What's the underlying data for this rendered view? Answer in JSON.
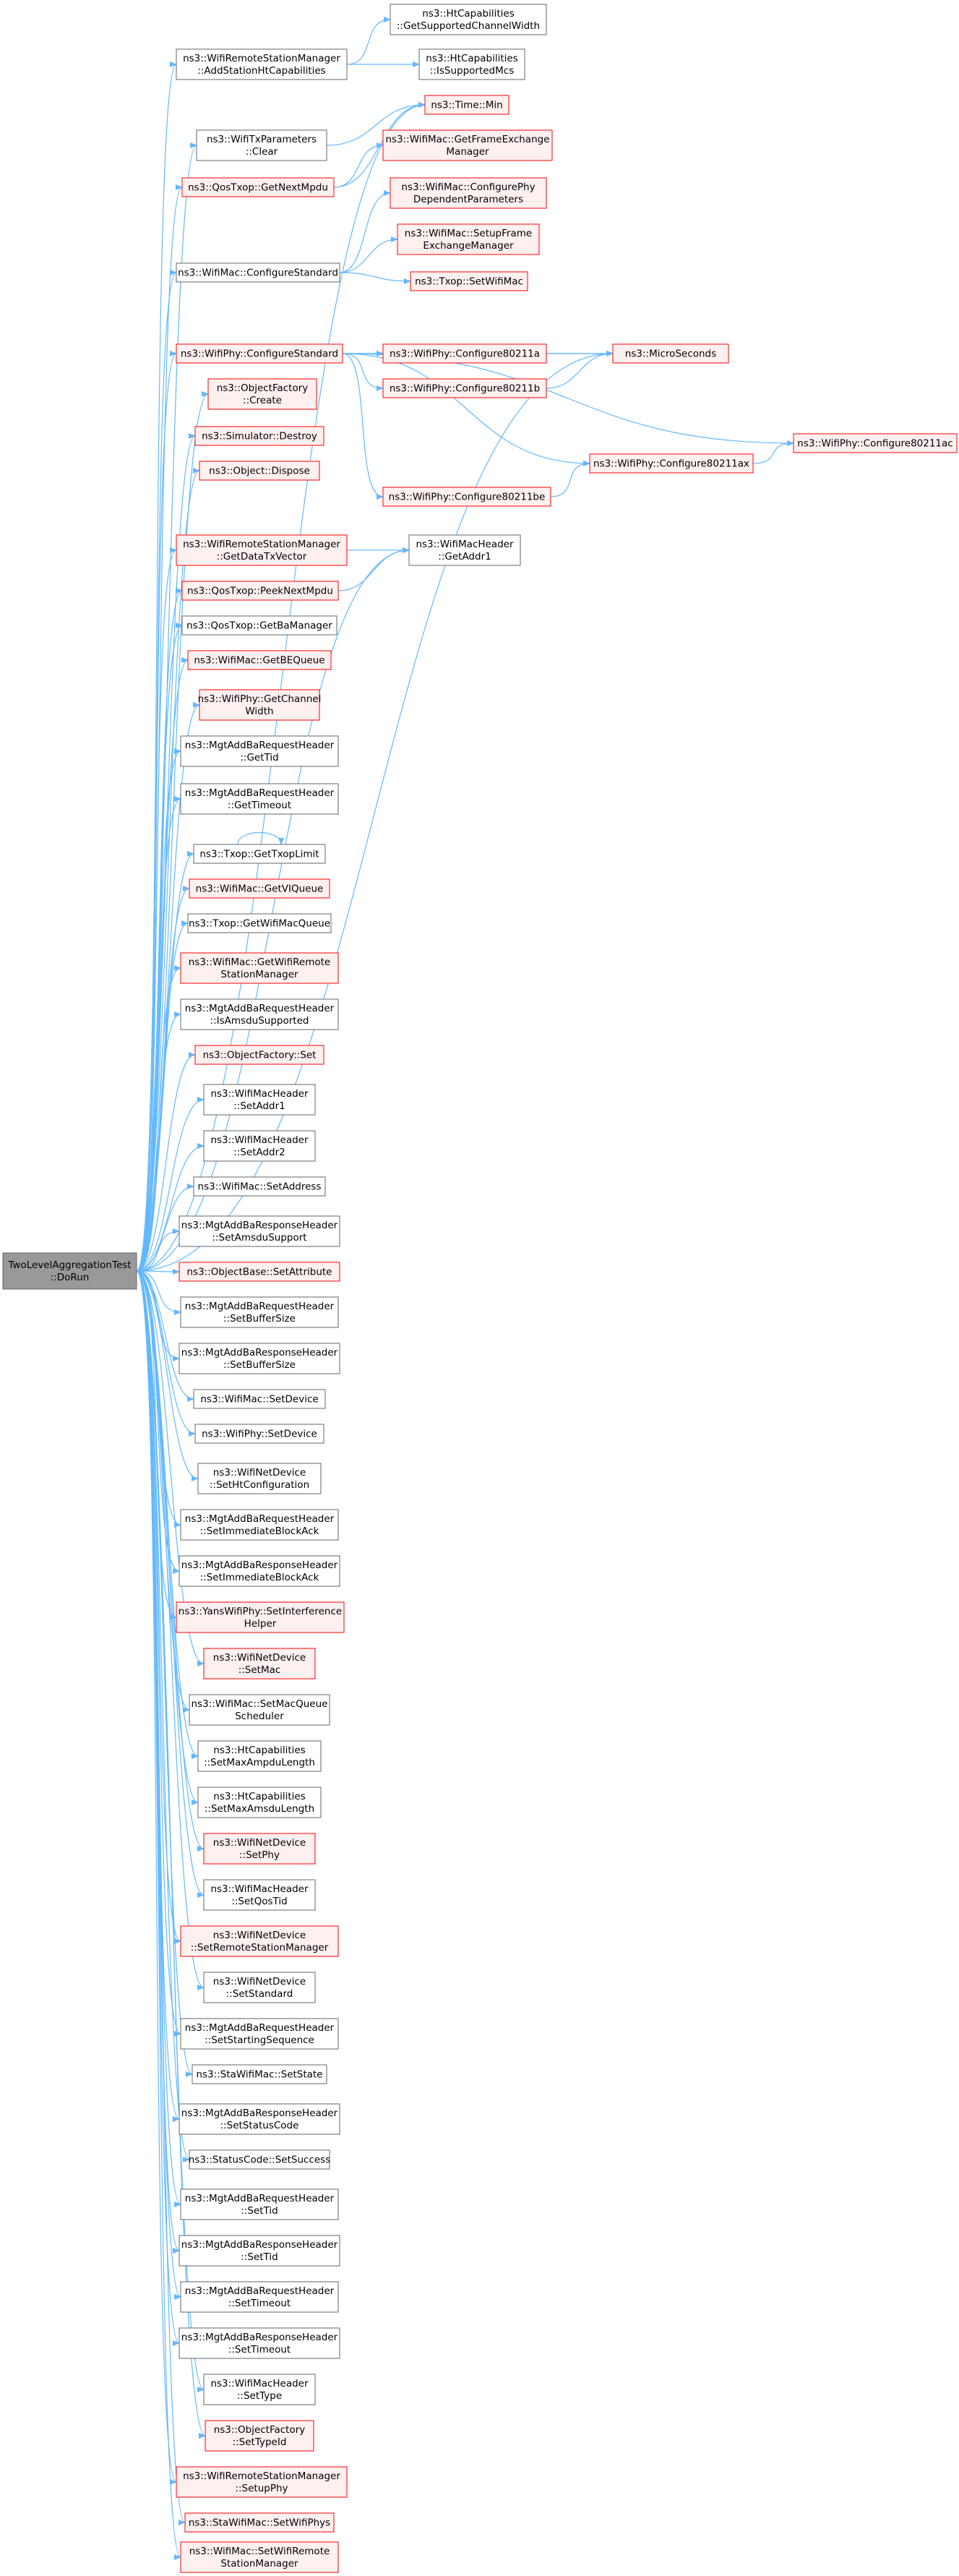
{
  "colors": {
    "edge": "#63b8ff",
    "node_border_plain": "#666666",
    "node_border_red": "#ff0000",
    "node_fill_plain": "#ffffff",
    "node_fill_red": "#fff0f0",
    "node_fill_root": "#999999",
    "text": "#000000"
  },
  "diagram": {
    "nodes": [
      {
        "id": "root",
        "lines": [
          "TwoLevelAggregationTest",
          "::DoRun"
        ],
        "style": "root"
      },
      {
        "id": "htcap_gscw",
        "lines": [
          "ns3::HtCapabilities",
          "::GetSupportedChannelWidth"
        ],
        "style": "plain"
      },
      {
        "id": "wrsm_addht",
        "lines": [
          "ns3::WifiRemoteStationManager",
          "::AddStationHtCapabilities"
        ],
        "style": "plain"
      },
      {
        "id": "htcap_ism",
        "lines": [
          "ns3::HtCapabilities",
          "::IsSupportedMcs"
        ],
        "style": "plain"
      },
      {
        "id": "time_min",
        "lines": [
          "ns3::Time::Min"
        ],
        "style": "red"
      },
      {
        "id": "wtp_clear",
        "lines": [
          "ns3::WifiTxParameters",
          "::Clear"
        ],
        "style": "plain"
      },
      {
        "id": "mac_gfem",
        "lines": [
          "ns3::WifiMac::GetFrameExchange",
          "Manager"
        ],
        "style": "red"
      },
      {
        "id": "qos_gnm",
        "lines": [
          "ns3::QosTxop::GetNextMpdu"
        ],
        "style": "red"
      },
      {
        "id": "mac_cpdp",
        "lines": [
          "ns3::WifiMac::ConfigurePhy",
          "DependentParameters"
        ],
        "style": "red"
      },
      {
        "id": "mac_sfem",
        "lines": [
          "ns3::WifiMac::SetupFrame",
          "ExchangeManager"
        ],
        "style": "red"
      },
      {
        "id": "mac_cs",
        "lines": [
          "ns3::WifiMac::ConfigureStandard"
        ],
        "style": "plain"
      },
      {
        "id": "txop_swm",
        "lines": [
          "ns3::Txop::SetWifiMac"
        ],
        "style": "red"
      },
      {
        "id": "phy_cs",
        "lines": [
          "ns3::WifiPhy::ConfigureStandard"
        ],
        "style": "red"
      },
      {
        "id": "phy_a",
        "lines": [
          "ns3::WifiPhy::Configure80211a"
        ],
        "style": "red"
      },
      {
        "id": "micro",
        "lines": [
          "ns3::MicroSeconds"
        ],
        "style": "red"
      },
      {
        "id": "phy_b",
        "lines": [
          "ns3::WifiPhy::Configure80211b"
        ],
        "style": "red"
      },
      {
        "id": "objf_create",
        "lines": [
          "ns3::ObjectFactory",
          "::Create"
        ],
        "style": "red"
      },
      {
        "id": "phy_ac",
        "lines": [
          "ns3::WifiPhy::Configure80211ac"
        ],
        "style": "red"
      },
      {
        "id": "phy_ax",
        "lines": [
          "ns3::WifiPhy::Configure80211ax"
        ],
        "style": "red"
      },
      {
        "id": "sim_destroy",
        "lines": [
          "ns3::Simulator::Destroy"
        ],
        "style": "red"
      },
      {
        "id": "phy_be",
        "lines": [
          "ns3::WifiPhy::Configure80211be"
        ],
        "style": "red"
      },
      {
        "id": "obj_dispose",
        "lines": [
          "ns3::Object::Dispose"
        ],
        "style": "red"
      },
      {
        "id": "wrsm_gdtv",
        "lines": [
          "ns3::WifiRemoteStationManager",
          "::GetDataTxVector"
        ],
        "style": "red"
      },
      {
        "id": "wmh_ga1",
        "lines": [
          "ns3::WifiMacHeader",
          "::GetAddr1"
        ],
        "style": "plain"
      },
      {
        "id": "qos_pnm",
        "lines": [
          "ns3::QosTxop::PeekNextMpdu"
        ],
        "style": "red"
      },
      {
        "id": "qos_gbm",
        "lines": [
          "ns3::QosTxop::GetBaManager"
        ],
        "style": "plain"
      },
      {
        "id": "mac_gbeq",
        "lines": [
          "ns3::WifiMac::GetBEQueue"
        ],
        "style": "red"
      },
      {
        "id": "phy_gcw",
        "lines": [
          "ns3::WifiPhy::GetChannel",
          "Width"
        ],
        "style": "red"
      },
      {
        "id": "mabreq_gtid",
        "lines": [
          "ns3::MgtAddBaRequestHeader",
          "::GetTid"
        ],
        "style": "plain"
      },
      {
        "id": "mabreq_gto",
        "lines": [
          "ns3::MgtAddBaRequestHeader",
          "::GetTimeout"
        ],
        "style": "plain"
      },
      {
        "id": "txop_gtl",
        "lines": [
          "ns3::Txop::GetTxopLimit"
        ],
        "style": "plain"
      },
      {
        "id": "mac_gviq",
        "lines": [
          "ns3::WifiMac::GetVIQueue"
        ],
        "style": "red"
      },
      {
        "id": "txop_gwmq",
        "lines": [
          "ns3::Txop::GetWifiMacQueue"
        ],
        "style": "plain"
      },
      {
        "id": "mac_gwrsm",
        "lines": [
          "ns3::WifiMac::GetWifiRemote",
          "StationManager"
        ],
        "style": "red"
      },
      {
        "id": "mabreq_ias",
        "lines": [
          "ns3::MgtAddBaRequestHeader",
          "::IsAmsduSupported"
        ],
        "style": "plain"
      },
      {
        "id": "objf_set",
        "lines": [
          "ns3::ObjectFactory::Set"
        ],
        "style": "red"
      },
      {
        "id": "wmh_sa1",
        "lines": [
          "ns3::WifiMacHeader",
          "::SetAddr1"
        ],
        "style": "plain"
      },
      {
        "id": "wmh_sa2",
        "lines": [
          "ns3::WifiMacHeader",
          "::SetAddr2"
        ],
        "style": "plain"
      },
      {
        "id": "mac_sadr",
        "lines": [
          "ns3::WifiMac::SetAddress"
        ],
        "style": "plain"
      },
      {
        "id": "mabresp_sas",
        "lines": [
          "ns3::MgtAddBaResponseHeader",
          "::SetAmsduSupport"
        ],
        "style": "plain"
      },
      {
        "id": "objb_sattr",
        "lines": [
          "ns3::ObjectBase::SetAttribute"
        ],
        "style": "red"
      },
      {
        "id": "mabreq_sbs",
        "lines": [
          "ns3::MgtAddBaRequestHeader",
          "::SetBufferSize"
        ],
        "style": "plain"
      },
      {
        "id": "mabresp_sbs",
        "lines": [
          "ns3::MgtAddBaResponseHeader",
          "::SetBufferSize"
        ],
        "style": "plain"
      },
      {
        "id": "mac_sdev",
        "lines": [
          "ns3::WifiMac::SetDevice"
        ],
        "style": "plain"
      },
      {
        "id": "phy_sdev",
        "lines": [
          "ns3::WifiPhy::SetDevice"
        ],
        "style": "plain"
      },
      {
        "id": "wnd_shtc",
        "lines": [
          "ns3::WifiNetDevice",
          "::SetHtConfiguration"
        ],
        "style": "plain"
      },
      {
        "id": "mabreq_siba",
        "lines": [
          "ns3::MgtAddBaRequestHeader",
          "::SetImmediateBlockAck"
        ],
        "style": "plain"
      },
      {
        "id": "mabresp_siba",
        "lines": [
          "ns3::MgtAddBaResponseHeader",
          "::SetImmediateBlockAck"
        ],
        "style": "plain"
      },
      {
        "id": "yans_sih",
        "lines": [
          "ns3::YansWifiPhy::SetInterference",
          "Helper"
        ],
        "style": "red"
      },
      {
        "id": "wnd_smac",
        "lines": [
          "ns3::WifiNetDevice",
          "::SetMac"
        ],
        "style": "red"
      },
      {
        "id": "mac_smqs",
        "lines": [
          "ns3::WifiMac::SetMacQueue",
          "Scheduler"
        ],
        "style": "plain"
      },
      {
        "id": "htcap_smal",
        "lines": [
          "ns3::HtCapabilities",
          "::SetMaxAmpduLength"
        ],
        "style": "plain"
      },
      {
        "id": "htcap_smsl",
        "lines": [
          "ns3::HtCapabilities",
          "::SetMaxAmsduLength"
        ],
        "style": "plain"
      },
      {
        "id": "wnd_sphy",
        "lines": [
          "ns3::WifiNetDevice",
          "::SetPhy"
        ],
        "style": "red"
      },
      {
        "id": "wmh_sqt",
        "lines": [
          "ns3::WifiMacHeader",
          "::SetQosTid"
        ],
        "style": "plain"
      },
      {
        "id": "wnd_srsm",
        "lines": [
          "ns3::WifiNetDevice",
          "::SetRemoteStationManager"
        ],
        "style": "red"
      },
      {
        "id": "wnd_sstd",
        "lines": [
          "ns3::WifiNetDevice",
          "::SetStandard"
        ],
        "style": "plain"
      },
      {
        "id": "mabreq_sss",
        "lines": [
          "ns3::MgtAddBaRequestHeader",
          "::SetStartingSequence"
        ],
        "style": "plain"
      },
      {
        "id": "sta_sst",
        "lines": [
          "ns3::StaWifiMac::SetState"
        ],
        "style": "plain"
      },
      {
        "id": "mabresp_ssc",
        "lines": [
          "ns3::MgtAddBaResponseHeader",
          "::SetStatusCode"
        ],
        "style": "plain"
      },
      {
        "id": "sc_ss",
        "lines": [
          "ns3::StatusCode::SetSuccess"
        ],
        "style": "plain"
      },
      {
        "id": "mabreq_stid",
        "lines": [
          "ns3::MgtAddBaRequestHeader",
          "::SetTid"
        ],
        "style": "plain"
      },
      {
        "id": "mabresp_stid",
        "lines": [
          "ns3::MgtAddBaResponseHeader",
          "::SetTid"
        ],
        "style": "plain"
      },
      {
        "id": "mabreq_sto",
        "lines": [
          "ns3::MgtAddBaRequestHeader",
          "::SetTimeout"
        ],
        "style": "plain"
      },
      {
        "id": "mabresp_sto",
        "lines": [
          "ns3::MgtAddBaResponseHeader",
          "::SetTimeout"
        ],
        "style": "plain"
      },
      {
        "id": "wmh_stype",
        "lines": [
          "ns3::WifiMacHeader",
          "::SetType"
        ],
        "style": "plain"
      },
      {
        "id": "objf_stid",
        "lines": [
          "ns3::ObjectFactory",
          "::SetTypeId"
        ],
        "style": "red"
      },
      {
        "id": "wrsm_sphy",
        "lines": [
          "ns3::WifiRemoteStationManager",
          "::SetupPhy"
        ],
        "style": "red"
      },
      {
        "id": "sta_swp",
        "lines": [
          "ns3::StaWifiMac::SetWifiPhys"
        ],
        "style": "red"
      },
      {
        "id": "mac_swrsm",
        "lines": [
          "ns3::WifiMac::SetWifiRemote",
          "StationManager"
        ],
        "style": "red"
      }
    ],
    "edges": [
      [
        "wrsm_addht",
        "htcap_gscw"
      ],
      [
        "wrsm_addht",
        "htcap_ism"
      ],
      [
        "wtp_clear",
        "time_min"
      ],
      [
        "qos_gnm",
        "time_min"
      ],
      [
        "qos_gnm",
        "mac_gfem"
      ],
      [
        "mac_cs",
        "mac_cpdp"
      ],
      [
        "mac_cs",
        "mac_sfem"
      ],
      [
        "mac_cs",
        "txop_swm"
      ],
      [
        "phy_cs",
        "phy_a"
      ],
      [
        "phy_cs",
        "phy_b"
      ],
      [
        "phy_cs",
        "micro"
      ],
      [
        "phy_cs",
        "phy_ac"
      ],
      [
        "phy_cs",
        "phy_ax"
      ],
      [
        "phy_cs",
        "phy_be"
      ],
      [
        "phy_a",
        "micro"
      ],
      [
        "phy_b",
        "micro"
      ],
      [
        "phy_ax",
        "phy_ac"
      ],
      [
        "phy_be",
        "phy_ax"
      ],
      [
        "wrsm_gdtv",
        "wmh_ga1"
      ],
      [
        "qos_pnm",
        "wmh_ga1"
      ],
      [
        "txop_gtl",
        "txop_gtl"
      ],
      [
        "root",
        "wrsm_addht"
      ],
      [
        "root",
        "time_min"
      ],
      [
        "root",
        "wtp_clear"
      ],
      [
        "root",
        "qos_gnm"
      ],
      [
        "root",
        "mac_cs"
      ],
      [
        "root",
        "micro"
      ],
      [
        "root",
        "phy_cs"
      ],
      [
        "root",
        "objf_create"
      ],
      [
        "root",
        "sim_destroy"
      ],
      [
        "root",
        "obj_dispose"
      ],
      [
        "root",
        "wmh_ga1"
      ],
      [
        "root",
        "wrsm_gdtv"
      ],
      [
        "root",
        "qos_pnm"
      ],
      [
        "root",
        "qos_gbm"
      ],
      [
        "root",
        "mac_gbeq"
      ],
      [
        "root",
        "phy_gcw"
      ],
      [
        "root",
        "mabreq_gtid"
      ],
      [
        "root",
        "mabreq_gto"
      ],
      [
        "root",
        "txop_gtl"
      ],
      [
        "root",
        "mac_gviq"
      ],
      [
        "root",
        "txop_gwmq"
      ],
      [
        "root",
        "mac_gwrsm"
      ],
      [
        "root",
        "mabreq_ias"
      ],
      [
        "root",
        "objf_set"
      ],
      [
        "root",
        "wmh_sa1"
      ],
      [
        "root",
        "wmh_sa2"
      ],
      [
        "root",
        "mac_sadr"
      ],
      [
        "root",
        "mabresp_sas"
      ],
      [
        "root",
        "objb_sattr"
      ],
      [
        "root",
        "mabreq_sbs"
      ],
      [
        "root",
        "mabresp_sbs"
      ],
      [
        "root",
        "mac_sdev"
      ],
      [
        "root",
        "phy_sdev"
      ],
      [
        "root",
        "wnd_shtc"
      ],
      [
        "root",
        "mabreq_siba"
      ],
      [
        "root",
        "mabresp_siba"
      ],
      [
        "root",
        "yans_sih"
      ],
      [
        "root",
        "wnd_smac"
      ],
      [
        "root",
        "mac_smqs"
      ],
      [
        "root",
        "htcap_smal"
      ],
      [
        "root",
        "htcap_smsl"
      ],
      [
        "root",
        "wnd_sphy"
      ],
      [
        "root",
        "wmh_sqt"
      ],
      [
        "root",
        "wnd_srsm"
      ],
      [
        "root",
        "wnd_sstd"
      ],
      [
        "root",
        "mabreq_sss"
      ],
      [
        "root",
        "sta_sst"
      ],
      [
        "root",
        "mabresp_ssc"
      ],
      [
        "root",
        "sc_ss"
      ],
      [
        "root",
        "mabreq_stid"
      ],
      [
        "root",
        "mabresp_stid"
      ],
      [
        "root",
        "mabreq_sto"
      ],
      [
        "root",
        "mabresp_sto"
      ],
      [
        "root",
        "wmh_stype"
      ],
      [
        "root",
        "objf_stid"
      ],
      [
        "root",
        "wrsm_sphy"
      ],
      [
        "root",
        "sta_swp"
      ],
      [
        "root",
        "mac_swrsm"
      ]
    ]
  }
}
